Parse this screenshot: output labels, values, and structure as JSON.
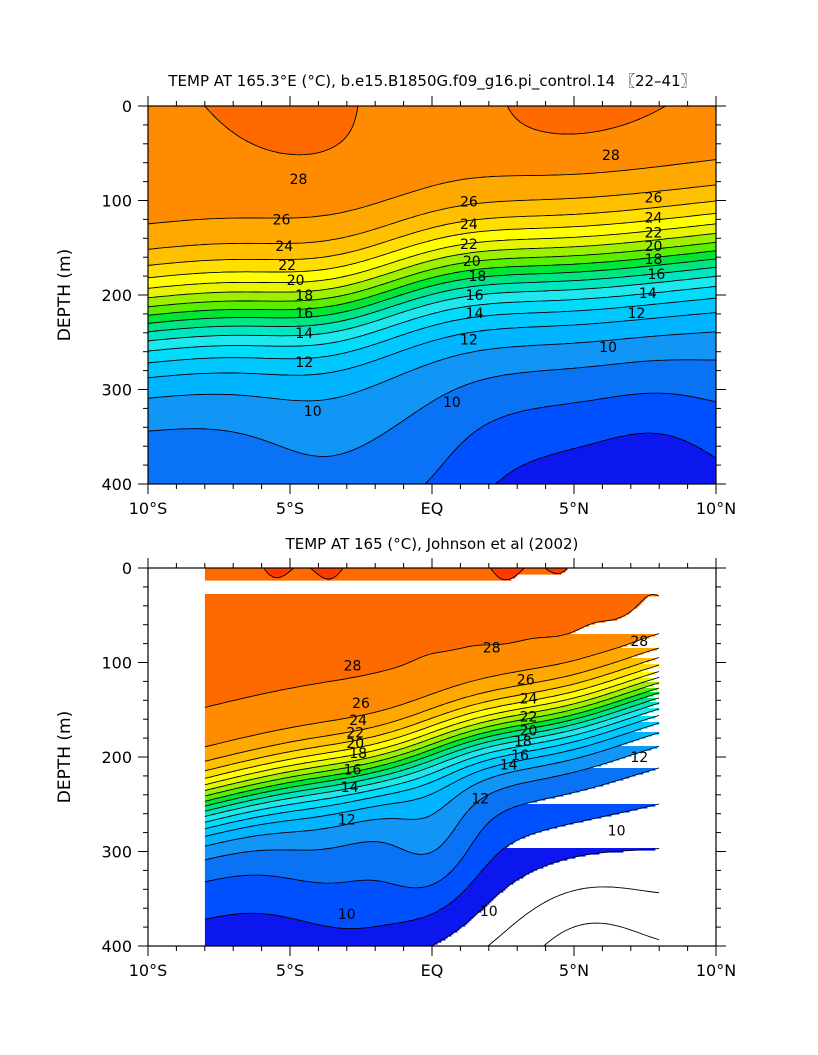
{
  "colors": {
    "levels": [
      {
        "min": -99,
        "max": 8,
        "color": "#6a12e0"
      },
      {
        "min": 8,
        "max": 9,
        "color": "#0b17ee"
      },
      {
        "min": 9,
        "max": 10,
        "color": "#0050ff"
      },
      {
        "min": 10,
        "max": 11,
        "color": "#0a72f5"
      },
      {
        "min": 11,
        "max": 12,
        "color": "#1296f6"
      },
      {
        "min": 12,
        "max": 13,
        "color": "#00b4ff"
      },
      {
        "min": 13,
        "max": 14,
        "color": "#00c8ff"
      },
      {
        "min": 14,
        "max": 15,
        "color": "#00dcfa"
      },
      {
        "min": 15,
        "max": 16,
        "color": "#1ee8ee"
      },
      {
        "min": 16,
        "max": 17,
        "color": "#00e6c0"
      },
      {
        "min": 17,
        "max": 18,
        "color": "#00e482"
      },
      {
        "min": 18,
        "max": 19,
        "color": "#00e632"
      },
      {
        "min": 19,
        "max": 20,
        "color": "#5aee00"
      },
      {
        "min": 20,
        "max": 21,
        "color": "#9ef000"
      },
      {
        "min": 21,
        "max": 22,
        "color": "#e6f500"
      },
      {
        "min": 22,
        "max": 23,
        "color": "#ffff00"
      },
      {
        "min": 23,
        "max": 24,
        "color": "#ffde00"
      },
      {
        "min": 24,
        "max": 25,
        "color": "#ffc000"
      },
      {
        "min": 25,
        "max": 26,
        "color": "#ffa800"
      },
      {
        "min": 26,
        "max": 27,
        "color": "#ff8c00"
      },
      {
        "min": 27,
        "max": 28,
        "color": "#ff6a00"
      },
      {
        "min": 28,
        "max": 29,
        "color": "#ff3a00"
      },
      {
        "min": 29,
        "max": 30,
        "color": "#ff0000"
      },
      {
        "min": 30,
        "max": 99,
        "color": "#dc0000"
      }
    ]
  },
  "chart_data": [
    {
      "type": "contour",
      "title": "TEMP AT 165.3°E (°C), b.e15.B1850G.f09_g16.pi_control.14 〖22–41〗",
      "ylabel": "DEPTH (m)",
      "xlim": [
        -10,
        10
      ],
      "ylim": [
        400,
        0
      ],
      "data_xlim": [
        -10,
        10
      ],
      "x_ticks": [
        -10,
        -5,
        0,
        5,
        10
      ],
      "x_tick_labels": [
        "10°S",
        "5°S",
        "EQ",
        "5°N",
        "10°N"
      ],
      "y_ticks": [
        0,
        100,
        200,
        300,
        400
      ],
      "y_tick_labels": [
        "0",
        "100",
        "200",
        "300",
        "400"
      ],
      "contour_interval": 1,
      "contour_labels": [
        {
          "text": "28",
          "x": -4.7,
          "y": 77
        },
        {
          "text": "26",
          "x": -5.3,
          "y": 120
        },
        {
          "text": "24",
          "x": -5.2,
          "y": 148
        },
        {
          "text": "22",
          "x": -5.1,
          "y": 168
        },
        {
          "text": "20",
          "x": -4.8,
          "y": 184
        },
        {
          "text": "18",
          "x": -4.5,
          "y": 200
        },
        {
          "text": "16",
          "x": -4.5,
          "y": 219
        },
        {
          "text": "14",
          "x": -4.5,
          "y": 240
        },
        {
          "text": "12",
          "x": -4.5,
          "y": 271
        },
        {
          "text": "10",
          "x": -4.2,
          "y": 323
        },
        {
          "text": "26",
          "x": 1.3,
          "y": 101
        },
        {
          "text": "24",
          "x": 1.3,
          "y": 125
        },
        {
          "text": "22",
          "x": 1.3,
          "y": 146
        },
        {
          "text": "20",
          "x": 1.4,
          "y": 164
        },
        {
          "text": "18",
          "x": 1.6,
          "y": 180
        },
        {
          "text": "16",
          "x": 1.5,
          "y": 200
        },
        {
          "text": "14",
          "x": 1.5,
          "y": 219
        },
        {
          "text": "12",
          "x": 1.3,
          "y": 247
        },
        {
          "text": "10",
          "x": 0.7,
          "y": 313
        },
        {
          "text": "28",
          "x": 6.3,
          "y": 52
        },
        {
          "text": "26",
          "x": 7.8,
          "y": 97
        },
        {
          "text": "24",
          "x": 7.8,
          "y": 118
        },
        {
          "text": "22",
          "x": 7.8,
          "y": 134
        },
        {
          "text": "20",
          "x": 7.8,
          "y": 148
        },
        {
          "text": "18",
          "x": 7.8,
          "y": 162
        },
        {
          "text": "16",
          "x": 7.9,
          "y": 178
        },
        {
          "text": "14",
          "x": 7.6,
          "y": 198
        },
        {
          "text": "12",
          "x": 7.2,
          "y": 219
        },
        {
          "text": "10",
          "x": 6.2,
          "y": 255
        }
      ]
    },
    {
      "type": "contour",
      "title": "TEMP AT 165 (°C), Johnson et al (2002)",
      "ylabel": "DEPTH (m)",
      "xlim": [
        -10,
        10
      ],
      "ylim": [
        400,
        0
      ],
      "data_xlim": [
        -8,
        8
      ],
      "x_ticks": [
        -10,
        -5,
        0,
        5,
        10
      ],
      "x_tick_labels": [
        "10°S",
        "5°S",
        "EQ",
        "5°N",
        "10°N"
      ],
      "y_ticks": [
        0,
        100,
        200,
        300,
        400
      ],
      "y_tick_labels": [
        "0",
        "100",
        "200",
        "300",
        "400"
      ],
      "contour_interval": 1,
      "contour_labels": [
        {
          "text": "28",
          "x": -2.8,
          "y": 103
        },
        {
          "text": "26",
          "x": -2.5,
          "y": 143
        },
        {
          "text": "24",
          "x": -2.6,
          "y": 161
        },
        {
          "text": "22",
          "x": -2.7,
          "y": 174
        },
        {
          "text": "20",
          "x": -2.7,
          "y": 185
        },
        {
          "text": "18",
          "x": -2.6,
          "y": 196
        },
        {
          "text": "16",
          "x": -2.8,
          "y": 213
        },
        {
          "text": "14",
          "x": -2.9,
          "y": 232
        },
        {
          "text": "12",
          "x": -3.0,
          "y": 266
        },
        {
          "text": "10",
          "x": -3.0,
          "y": 366
        },
        {
          "text": "28",
          "x": 2.1,
          "y": 84
        },
        {
          "text": "26",
          "x": 3.3,
          "y": 118
        },
        {
          "text": "24",
          "x": 3.4,
          "y": 138
        },
        {
          "text": "22",
          "x": 3.4,
          "y": 157
        },
        {
          "text": "20",
          "x": 3.4,
          "y": 172
        },
        {
          "text": "18",
          "x": 3.2,
          "y": 183
        },
        {
          "text": "16",
          "x": 3.1,
          "y": 198
        },
        {
          "text": "14",
          "x": 2.7,
          "y": 208
        },
        {
          "text": "12",
          "x": 1.7,
          "y": 244
        },
        {
          "text": "10",
          "x": 2.0,
          "y": 363
        },
        {
          "text": "28",
          "x": 7.3,
          "y": 77
        },
        {
          "text": "12",
          "x": 7.3,
          "y": 200
        },
        {
          "text": "10",
          "x": 6.5,
          "y": 278
        }
      ]
    }
  ]
}
